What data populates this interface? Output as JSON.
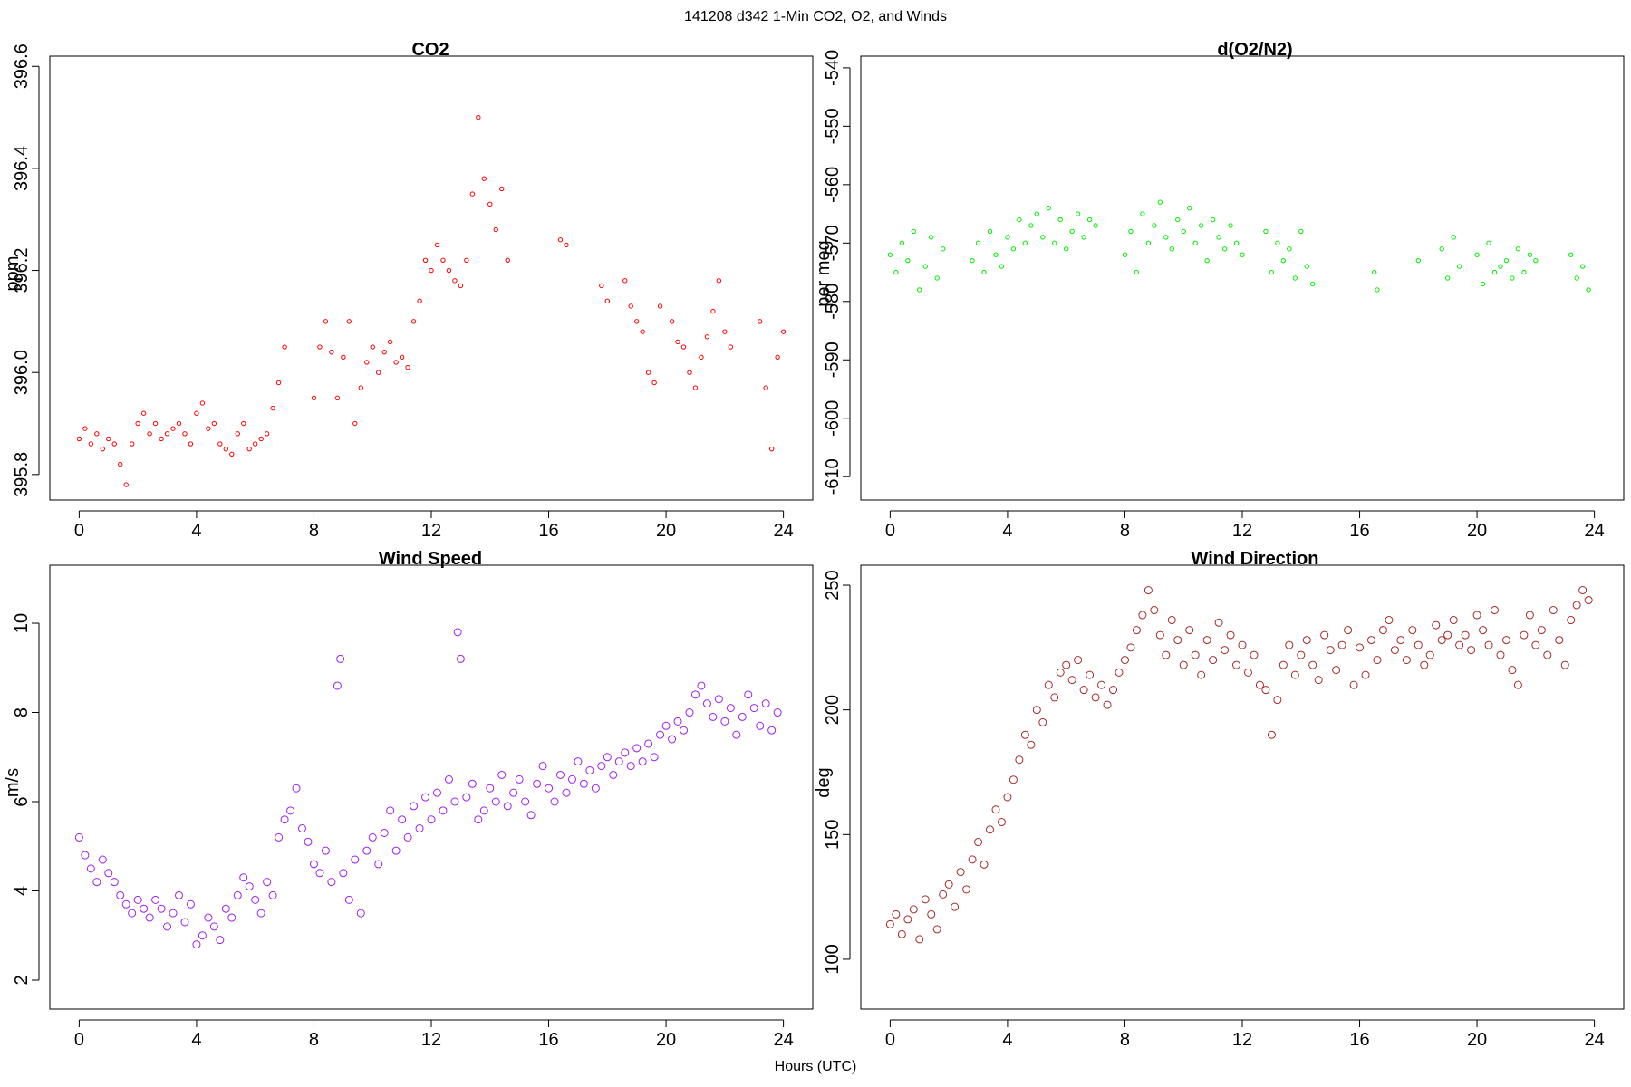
{
  "figure": {
    "title": "141208   d342   1-Min CO2, O2, and Winds",
    "xlabel": "Hours (UTC)"
  },
  "chart_data": [
    {
      "type": "scatter",
      "title": "CO2",
      "ylabel": "ppm",
      "xlim": [
        -1,
        25
      ],
      "ylim": [
        395.75,
        396.62
      ],
      "xticks": [
        0,
        4,
        8,
        12,
        16,
        20,
        24
      ],
      "yticks": [
        395.8,
        396.0,
        396.2,
        396.4,
        396.6
      ],
      "ytick_labels": [
        "395.8",
        "396.0",
        "396.2",
        "396.4",
        "396.6"
      ],
      "color": "#ff0000",
      "marker_size": 2.2,
      "x": [
        0.0,
        0.2,
        0.4,
        0.6,
        0.8,
        1.0,
        1.2,
        1.4,
        1.6,
        1.8,
        2.0,
        2.2,
        2.4,
        2.6,
        2.8,
        3.0,
        3.2,
        3.4,
        3.6,
        3.8,
        4.0,
        4.2,
        4.4,
        4.6,
        4.8,
        5.0,
        5.2,
        5.4,
        5.6,
        5.8,
        6.0,
        6.2,
        6.4,
        6.6,
        6.8,
        7.0,
        8.0,
        8.2,
        8.4,
        8.6,
        8.8,
        9.0,
        9.2,
        9.4,
        9.6,
        9.8,
        10.0,
        10.2,
        10.4,
        10.6,
        10.8,
        11.0,
        11.2,
        11.4,
        11.6,
        11.8,
        12.0,
        12.2,
        12.4,
        12.6,
        12.8,
        13.0,
        13.2,
        13.4,
        13.6,
        13.8,
        14.0,
        14.2,
        14.4,
        14.6,
        16.4,
        16.6,
        17.8,
        18.0,
        18.6,
        18.8,
        19.0,
        19.2,
        19.4,
        19.6,
        19.8,
        20.2,
        20.4,
        20.6,
        20.8,
        21.0,
        21.2,
        21.4,
        21.6,
        21.8,
        22.0,
        22.2,
        23.2,
        23.4,
        23.6,
        23.8,
        24.0
      ],
      "y": [
        395.87,
        395.89,
        395.86,
        395.88,
        395.85,
        395.87,
        395.86,
        395.82,
        395.78,
        395.86,
        395.9,
        395.92,
        395.88,
        395.9,
        395.87,
        395.88,
        395.89,
        395.9,
        395.88,
        395.86,
        395.92,
        395.94,
        395.89,
        395.9,
        395.86,
        395.85,
        395.84,
        395.88,
        395.9,
        395.85,
        395.86,
        395.87,
        395.88,
        395.93,
        395.98,
        396.05,
        395.95,
        396.05,
        396.1,
        396.04,
        395.95,
        396.03,
        396.1,
        395.9,
        395.97,
        396.02,
        396.05,
        396.0,
        396.04,
        396.06,
        396.02,
        396.03,
        396.01,
        396.1,
        396.14,
        396.22,
        396.2,
        396.25,
        396.22,
        396.2,
        396.18,
        396.17,
        396.22,
        396.35,
        396.5,
        396.38,
        396.33,
        396.28,
        396.36,
        396.22,
        396.26,
        396.25,
        396.17,
        396.14,
        396.18,
        396.13,
        396.1,
        396.08,
        396.0,
        395.98,
        396.13,
        396.1,
        396.06,
        396.05,
        396.0,
        395.97,
        396.03,
        396.07,
        396.12,
        396.18,
        396.08,
        396.05,
        396.1,
        395.97,
        395.85,
        396.03,
        396.08
      ]
    },
    {
      "type": "scatter",
      "title": "d(O2/N2)",
      "ylabel": "per meg",
      "xlim": [
        -1,
        25
      ],
      "ylim": [
        -614,
        -538
      ],
      "xticks": [
        0,
        4,
        8,
        12,
        16,
        20,
        24
      ],
      "yticks": [
        -610,
        -600,
        -590,
        -580,
        -570,
        -560,
        -550,
        -540
      ],
      "ytick_labels": [
        "-610",
        "-600",
        "-590",
        "-580",
        "-570",
        "-560",
        "-550",
        "-540"
      ],
      "color": "#00ee00",
      "marker_size": 2.2,
      "x": [
        0.0,
        0.2,
        0.4,
        0.6,
        0.8,
        1.0,
        1.2,
        1.4,
        1.6,
        1.8,
        2.8,
        3.0,
        3.2,
        3.4,
        3.6,
        3.8,
        4.0,
        4.2,
        4.4,
        4.6,
        4.8,
        5.0,
        5.2,
        5.4,
        5.6,
        5.8,
        6.0,
        6.2,
        6.4,
        6.6,
        6.8,
        7.0,
        8.0,
        8.2,
        8.4,
        8.6,
        8.8,
        9.0,
        9.2,
        9.4,
        9.6,
        9.8,
        10.0,
        10.2,
        10.4,
        10.6,
        10.8,
        11.0,
        11.2,
        11.4,
        11.6,
        11.8,
        12.0,
        12.8,
        13.0,
        13.2,
        13.4,
        13.6,
        13.8,
        14.0,
        14.2,
        14.4,
        16.5,
        16.6,
        18.0,
        18.8,
        19.0,
        19.2,
        19.4,
        20.0,
        20.2,
        20.4,
        20.6,
        20.8,
        21.0,
        21.2,
        21.4,
        21.6,
        21.8,
        22.0,
        23.2,
        23.4,
        23.6,
        23.8
      ],
      "y": [
        -572,
        -575,
        -570,
        -573,
        -568,
        -578,
        -574,
        -569,
        -576,
        -571,
        -573,
        -570,
        -575,
        -568,
        -572,
        -574,
        -569,
        -571,
        -566,
        -570,
        -567,
        -565,
        -569,
        -564,
        -570,
        -566,
        -571,
        -568,
        -565,
        -569,
        -566,
        -567,
        -572,
        -568,
        -575,
        -565,
        -570,
        -567,
        -563,
        -569,
        -571,
        -566,
        -568,
        -564,
        -570,
        -567,
        -573,
        -566,
        -569,
        -571,
        -567,
        -570,
        -572,
        -568,
        -575,
        -570,
        -573,
        -571,
        -576,
        -568,
        -574,
        -577,
        -575,
        -578,
        -573,
        -571,
        -576,
        -569,
        -574,
        -572,
        -577,
        -570,
        -575,
        -574,
        -573,
        -576,
        -571,
        -575,
        -572,
        -573,
        -572,
        -576,
        -574,
        -578
      ]
    },
    {
      "type": "scatter",
      "title": "Wind Speed",
      "ylabel": "m/s",
      "xlim": [
        -1,
        25
      ],
      "ylim": [
        1.35,
        11.3
      ],
      "xticks": [
        0,
        4,
        8,
        12,
        16,
        20,
        24
      ],
      "yticks": [
        2,
        4,
        6,
        8,
        10
      ],
      "ytick_labels": [
        "2",
        "4",
        "6",
        "8",
        "10"
      ],
      "color": "#a020f0",
      "marker_size": 4,
      "x": [
        0.0,
        0.2,
        0.4,
        0.6,
        0.8,
        1.0,
        1.2,
        1.4,
        1.6,
        1.8,
        2.0,
        2.2,
        2.4,
        2.6,
        2.8,
        3.0,
        3.2,
        3.4,
        3.6,
        3.8,
        4.0,
        4.2,
        4.4,
        4.6,
        4.8,
        5.0,
        5.2,
        5.4,
        5.6,
        5.8,
        6.0,
        6.2,
        6.4,
        6.6,
        6.8,
        7.0,
        7.2,
        7.4,
        7.6,
        7.8,
        8.0,
        8.2,
        8.4,
        8.6,
        8.8,
        8.9,
        9.0,
        9.2,
        9.4,
        9.6,
        9.8,
        10.0,
        10.2,
        10.4,
        10.6,
        10.8,
        11.0,
        11.2,
        11.4,
        11.6,
        11.8,
        12.0,
        12.2,
        12.4,
        12.6,
        12.8,
        12.9,
        13.0,
        13.2,
        13.4,
        13.6,
        13.8,
        14.0,
        14.2,
        14.4,
        14.6,
        14.8,
        15.0,
        15.2,
        15.4,
        15.6,
        15.8,
        16.0,
        16.2,
        16.4,
        16.6,
        16.8,
        17.0,
        17.2,
        17.4,
        17.6,
        17.8,
        18.0,
        18.2,
        18.4,
        18.6,
        18.8,
        19.0,
        19.2,
        19.4,
        19.6,
        19.8,
        20.0,
        20.2,
        20.4,
        20.6,
        20.8,
        21.0,
        21.2,
        21.4,
        21.6,
        21.8,
        22.0,
        22.2,
        22.4,
        22.6,
        22.8,
        23.0,
        23.2,
        23.4,
        23.6,
        23.8
      ],
      "y": [
        5.2,
        4.8,
        4.5,
        4.2,
        4.7,
        4.4,
        4.2,
        3.9,
        3.7,
        3.5,
        3.8,
        3.6,
        3.4,
        3.8,
        3.6,
        3.2,
        3.5,
        3.9,
        3.3,
        3.7,
        2.8,
        3.0,
        3.4,
        3.2,
        2.9,
        3.6,
        3.4,
        3.9,
        4.3,
        4.1,
        3.8,
        3.5,
        4.2,
        3.9,
        5.2,
        5.6,
        5.8,
        6.3,
        5.4,
        5.1,
        4.6,
        4.4,
        4.9,
        4.2,
        8.6,
        9.2,
        4.4,
        3.8,
        4.7,
        3.5,
        4.9,
        5.2,
        4.6,
        5.3,
        5.8,
        4.9,
        5.6,
        5.2,
        5.9,
        5.4,
        6.1,
        5.6,
        6.2,
        5.8,
        6.5,
        6.0,
        9.8,
        9.2,
        6.1,
        6.4,
        5.6,
        5.8,
        6.3,
        6.0,
        6.6,
        5.9,
        6.2,
        6.5,
        6.0,
        5.7,
        6.4,
        6.8,
        6.3,
        6.0,
        6.6,
        6.2,
        6.5,
        6.9,
        6.4,
        6.7,
        6.3,
        6.8,
        7.0,
        6.6,
        6.9,
        7.1,
        6.8,
        7.2,
        6.9,
        7.3,
        7.0,
        7.5,
        7.7,
        7.4,
        7.8,
        7.6,
        8.0,
        8.4,
        8.6,
        8.2,
        7.9,
        8.3,
        7.8,
        8.1,
        7.5,
        7.9,
        8.4,
        8.1,
        7.7,
        8.2,
        7.6,
        8.0
      ]
    },
    {
      "type": "scatter",
      "title": "Wind Direction",
      "ylabel": "deg",
      "xlim": [
        -1,
        25
      ],
      "ylim": [
        80,
        258
      ],
      "xticks": [
        0,
        4,
        8,
        12,
        16,
        20,
        24
      ],
      "yticks": [
        100,
        150,
        200,
        250
      ],
      "ytick_labels": [
        "100",
        "150",
        "200",
        "250"
      ],
      "color": "#a52a2a",
      "marker_size": 4,
      "x": [
        0.0,
        0.2,
        0.4,
        0.6,
        0.8,
        1.0,
        1.2,
        1.4,
        1.6,
        1.8,
        2.0,
        2.2,
        2.4,
        2.6,
        2.8,
        3.0,
        3.2,
        3.4,
        3.6,
        3.8,
        4.0,
        4.2,
        4.4,
        4.6,
        4.8,
        5.0,
        5.2,
        5.4,
        5.6,
        5.8,
        6.0,
        6.2,
        6.4,
        6.6,
        6.8,
        7.0,
        7.2,
        7.4,
        7.6,
        7.8,
        8.0,
        8.2,
        8.4,
        8.6,
        8.8,
        9.0,
        9.2,
        9.4,
        9.6,
        9.8,
        10.0,
        10.2,
        10.4,
        10.6,
        10.8,
        11.0,
        11.2,
        11.4,
        11.6,
        11.8,
        12.0,
        12.2,
        12.4,
        12.6,
        12.8,
        13.0,
        13.2,
        13.4,
        13.6,
        13.8,
        14.0,
        14.2,
        14.4,
        14.6,
        14.8,
        15.0,
        15.2,
        15.4,
        15.6,
        15.8,
        16.0,
        16.2,
        16.4,
        16.6,
        16.8,
        17.0,
        17.2,
        17.4,
        17.6,
        17.8,
        18.0,
        18.2,
        18.4,
        18.6,
        18.8,
        19.0,
        19.2,
        19.4,
        19.6,
        19.8,
        20.0,
        20.2,
        20.4,
        20.6,
        20.8,
        21.0,
        21.2,
        21.4,
        21.6,
        21.8,
        22.0,
        22.2,
        22.4,
        22.6,
        22.8,
        23.0,
        23.2,
        23.4,
        23.6,
        23.8
      ],
      "y": [
        114,
        118,
        110,
        116,
        120,
        108,
        124,
        118,
        112,
        126,
        130,
        121,
        135,
        128,
        140,
        147,
        138,
        152,
        160,
        155,
        165,
        172,
        180,
        190,
        186,
        200,
        195,
        210,
        205,
        215,
        218,
        212,
        220,
        208,
        214,
        205,
        210,
        202,
        208,
        215,
        220,
        225,
        232,
        238,
        248,
        240,
        230,
        222,
        236,
        228,
        218,
        232,
        222,
        214,
        228,
        220,
        235,
        224,
        230,
        218,
        226,
        215,
        222,
        210,
        208,
        190,
        204,
        218,
        226,
        214,
        222,
        228,
        218,
        212,
        230,
        224,
        216,
        226,
        232,
        210,
        225,
        214,
        228,
        220,
        232,
        236,
        224,
        228,
        220,
        232,
        226,
        218,
        222,
        234,
        228,
        230,
        236,
        226,
        230,
        224,
        238,
        232,
        226,
        240,
        222,
        228,
        216,
        210,
        230,
        238,
        226,
        232,
        222,
        240,
        228,
        218,
        236,
        242,
        248,
        244
      ]
    }
  ]
}
